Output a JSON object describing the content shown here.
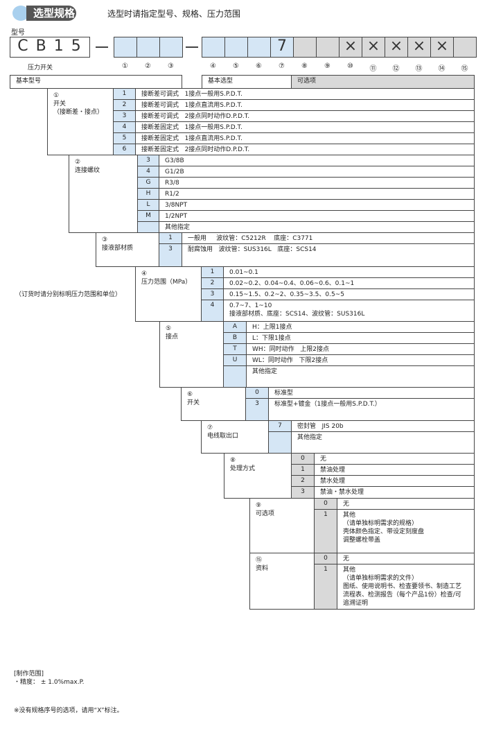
{
  "header": {
    "title": "选型规格",
    "subtitle": "选型时请指定型号、规格、压力范围"
  },
  "model": {
    "label": "型号",
    "prefix": "C B 1 5",
    "prefix_caption": "压力开关",
    "slots": [
      "",
      "",
      "",
      "",
      "",
      "",
      "7",
      "",
      "",
      "×",
      "×",
      "×",
      "×",
      "×",
      ""
    ],
    "slot_numbers": [
      "①",
      "②",
      "③",
      "④",
      "⑤",
      "⑥",
      "⑦",
      "⑧",
      "⑨",
      "⑩",
      "⑪",
      "⑫",
      "⑬",
      "⑭",
      "⑮"
    ],
    "basic_model": "基本型号",
    "basic_selection": "基本选型",
    "options": "可选项"
  },
  "colors": {
    "basic": "#d5e6f5",
    "option": "#d9d9d9",
    "border": "#444444"
  },
  "sections": [
    {
      "num": "①",
      "label": "开关",
      "sublabel": "（接断差・接点）",
      "rows": [
        {
          "code": "1",
          "desc": [
            "接断差可调式   1接点一般用S.P.D.T."
          ]
        },
        {
          "code": "2",
          "desc": [
            "接断差可调式   1接点直流用S.P.D.T."
          ]
        },
        {
          "code": "3",
          "desc": [
            "接断差可调式   2接点同时动作D.P.D.T."
          ]
        },
        {
          "code": "4",
          "desc": [
            "接断差固定式   1接点一般用S.P.D.T."
          ]
        },
        {
          "code": "5",
          "desc": [
            "接断差固定式   1接点直流用S.P.D.T."
          ]
        },
        {
          "code": "6",
          "desc": [
            "接断差固定式   2接点同时动作D.P.D.T."
          ]
        }
      ]
    },
    {
      "num": "②",
      "label": "连接螺纹",
      "sublabel": "",
      "rows": [
        {
          "code": "3",
          "desc": [
            "G3/8B"
          ]
        },
        {
          "code": "4",
          "desc": [
            "G1/2B"
          ]
        },
        {
          "code": "G",
          "desc": [
            "R3/8"
          ]
        },
        {
          "code": "H",
          "desc": [
            "R1/2"
          ]
        },
        {
          "code": "L",
          "desc": [
            "3/8NPT"
          ]
        },
        {
          "code": "M",
          "desc": [
            "1/2NPT"
          ]
        },
        {
          "code": "",
          "desc": [
            "其他指定"
          ]
        }
      ]
    },
    {
      "num": "③",
      "label": "接液部材质",
      "sublabel": "",
      "rows": [
        {
          "code": "1",
          "desc": [
            "一般用     波纹管：C5212R    底座：C3771"
          ]
        },
        {
          "code": "3",
          "desc": [
            "耐腐蚀用   波纹管：SUS316L   底座：SCS14"
          ]
        }
      ]
    },
    {
      "num": "④",
      "label": "压力范围（MPa）",
      "sublabel": "",
      "rows": [
        {
          "code": "1",
          "desc": [
            "0.01~0.1"
          ]
        },
        {
          "code": "2",
          "desc": [
            "0.02~0.2、0.04~0.4、0.06~0.6、0.1~1"
          ]
        },
        {
          "code": "3",
          "desc": [
            "0.15~1.5、0.2~2、0.35~3.5、0.5~5"
          ]
        },
        {
          "code": "4",
          "desc": [
            "0.7~7、1~10",
            "接液部材质、底座：SCS14、波纹管：SUS316L"
          ]
        }
      ]
    },
    {
      "num": "⑤",
      "label": "接点",
      "sublabel": "",
      "rows": [
        {
          "code": "A",
          "desc": [
            "H：上限1接点"
          ]
        },
        {
          "code": "B",
          "desc": [
            "L：下限1接点"
          ]
        },
        {
          "code": "T",
          "desc": [
            "WH：同时动作   上限2接点"
          ]
        },
        {
          "code": "U",
          "desc": [
            "WL：同时动作   下限2接点"
          ]
        },
        {
          "code": "",
          "desc": [
            "其他指定"
          ]
        }
      ]
    },
    {
      "num": "⑥",
      "label": "开关",
      "sublabel": "",
      "rows": [
        {
          "code": "0",
          "desc": [
            "标准型"
          ]
        },
        {
          "code": "3",
          "desc": [
            "标准型+镀金（1接点一般用S.P.D.T.）"
          ]
        }
      ]
    },
    {
      "num": "⑦",
      "label": "电线取出口",
      "sublabel": "",
      "rows": [
        {
          "code": "7",
          "desc": [
            "密封管   JIS 20b"
          ]
        },
        {
          "code": "",
          "desc": [
            "其他指定"
          ]
        }
      ]
    },
    {
      "num": "⑧",
      "label": "处理方式",
      "sublabel": "",
      "rows": [
        {
          "code": "0",
          "desc": [
            "无"
          ]
        },
        {
          "code": "1",
          "desc": [
            "禁油处理"
          ]
        },
        {
          "code": "2",
          "desc": [
            "禁水处理"
          ]
        },
        {
          "code": "3",
          "desc": [
            "禁油・禁水处理"
          ]
        }
      ]
    },
    {
      "num": "⑨",
      "label": "可选项",
      "sublabel": "",
      "rows": [
        {
          "code": "0",
          "desc": [
            "无"
          ]
        },
        {
          "code": "1",
          "desc": [
            "其他",
            "（请单独标明需求的规格）",
            "壳体颜色指定、带设定刻度盘",
            "调整螺栓带盖"
          ]
        }
      ]
    },
    {
      "num": "⑮",
      "label": "资料",
      "sublabel": "",
      "rows": [
        {
          "code": "0",
          "desc": [
            "无"
          ]
        },
        {
          "code": "1",
          "desc": [
            "其他",
            "（请单独标明需求的文件）",
            "图纸、使用说明书、检查要领书、制造工艺",
            "流程表、检测报告（每个产品1份）检查/可",
            "追溯证明"
          ]
        }
      ]
    }
  ],
  "pressure_note": "（订货时请分别标明压力范围和单位）",
  "footer": {
    "range_title": "[制作范围]",
    "accuracy": "・精度： ± 1.0%max.P.",
    "x_note": "※没有规格序号的选项，请用“X”标注。"
  }
}
